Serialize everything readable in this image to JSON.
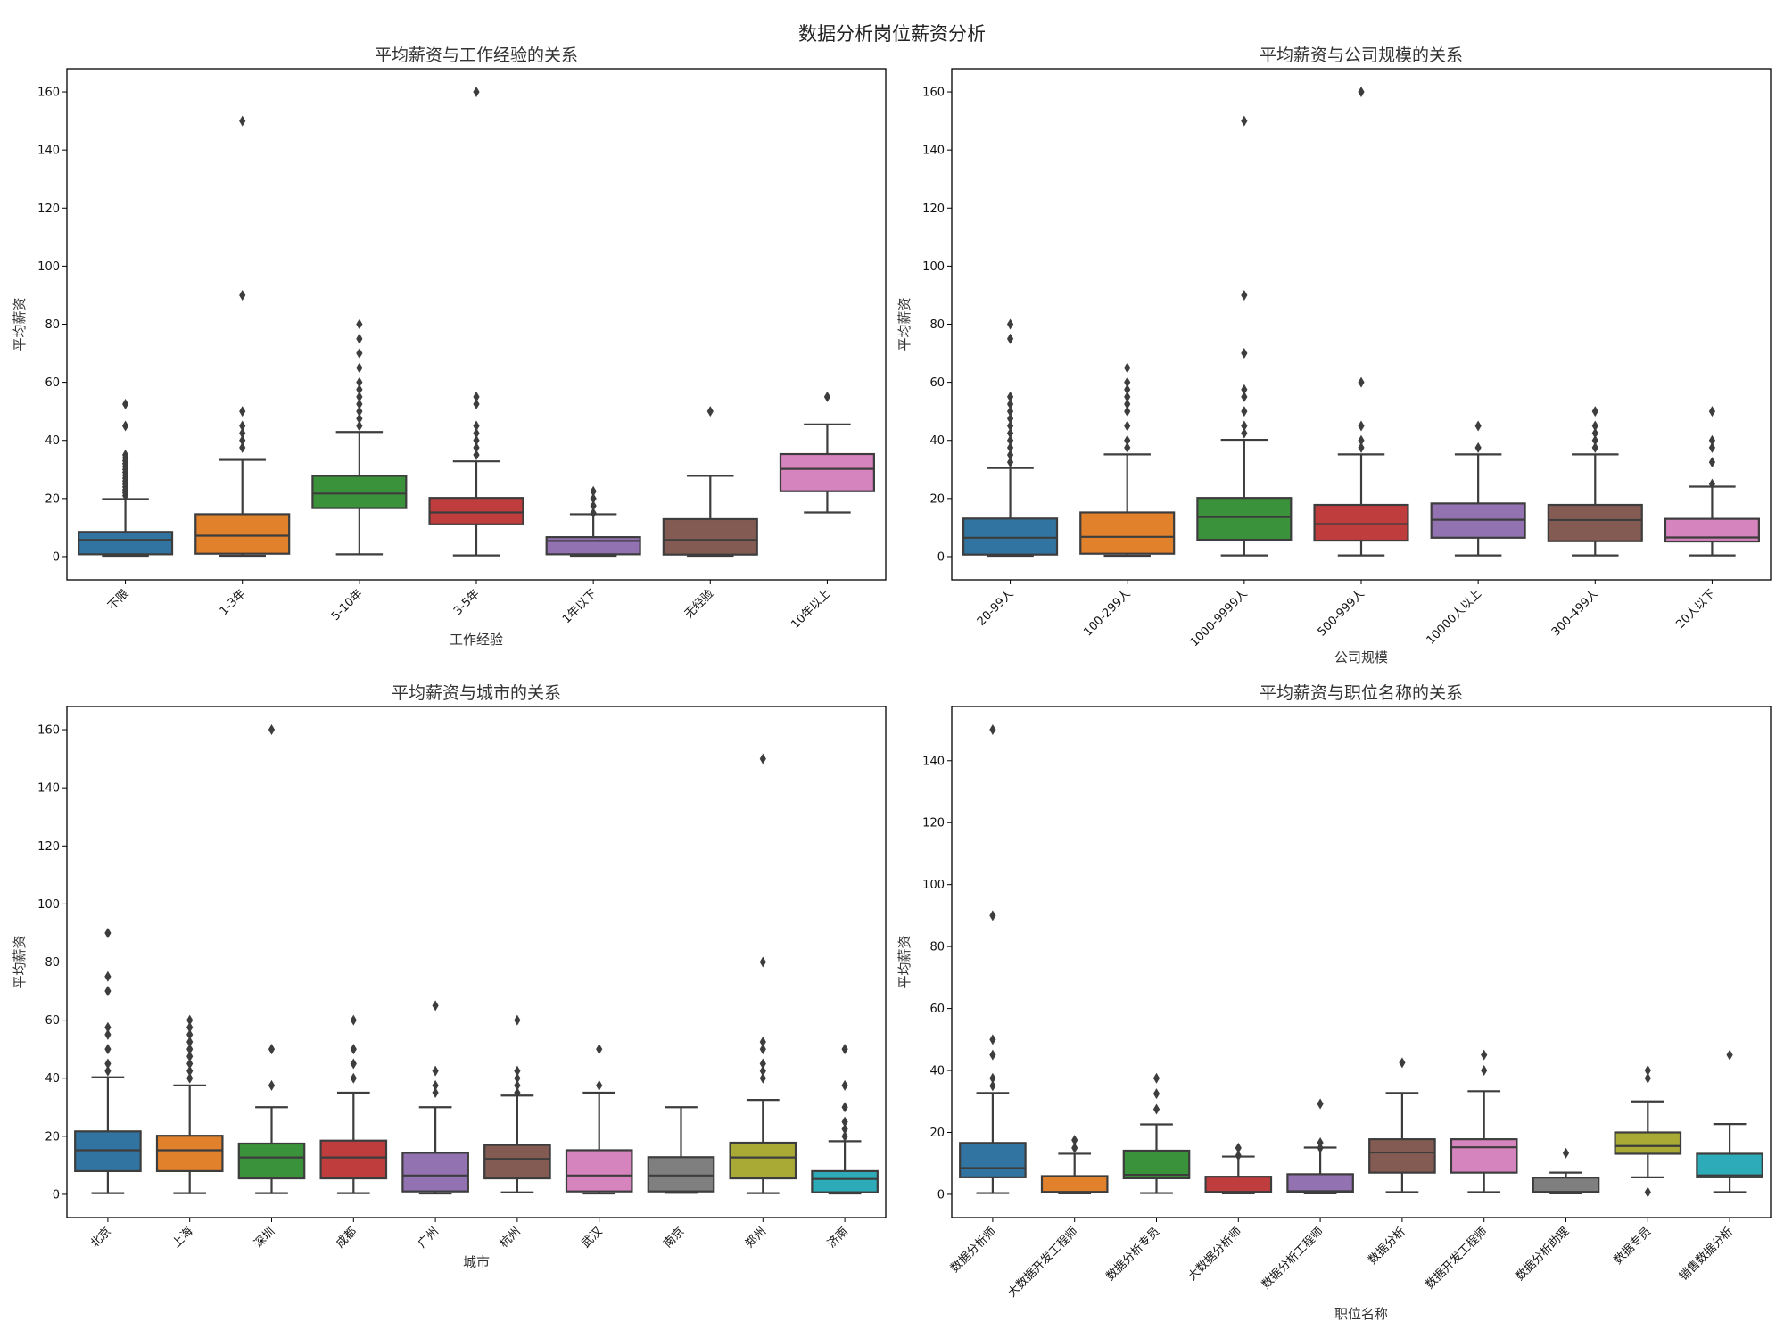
{
  "suptitle": "数据分析岗位薪资分析",
  "chart_data": [
    {
      "type": "box",
      "title": "平均薪资与工作经验的关系",
      "xlabel": "工作经验",
      "ylabel": "平均薪资",
      "ylim": [
        -8,
        168
      ],
      "yticks": [
        0,
        20,
        40,
        60,
        80,
        100,
        120,
        140,
        160
      ],
      "grid": false,
      "categories": [
        "不限",
        "1-3年",
        "5-10年",
        "3-5年",
        "1年以下",
        "无经验",
        "10年以上"
      ],
      "colors": [
        "#3274a1",
        "#e1812c",
        "#3a923a",
        "#c03d3e",
        "#9372b2",
        "#845b53",
        "#d684bd"
      ],
      "boxes": [
        {
          "whislo": 0.3,
          "q1": 0.8,
          "med": 5.7,
          "q3": 8.5,
          "whishi": 19.8,
          "fliers": [
            21,
            22,
            23,
            24,
            25,
            26,
            27,
            28,
            29,
            30,
            31,
            32,
            33,
            34,
            35,
            45,
            52.5
          ]
        },
        {
          "whislo": 0.3,
          "q1": 1.0,
          "med": 7.2,
          "q3": 14.6,
          "whishi": 33.3,
          "fliers": [
            37.5,
            40,
            42.5,
            45,
            50,
            90,
            150
          ]
        },
        {
          "whislo": 0.8,
          "q1": 16.7,
          "med": 21.7,
          "q3": 27.8,
          "whishi": 42.9,
          "fliers": [
            45,
            47.5,
            50,
            52.5,
            55,
            57.5,
            60,
            65,
            70,
            75,
            80
          ]
        },
        {
          "whislo": 0.4,
          "q1": 11.1,
          "med": 15.2,
          "q3": 20.2,
          "whishi": 32.8,
          "fliers": [
            35,
            37.5,
            40,
            42.5,
            45,
            52.5,
            55,
            160
          ]
        },
        {
          "whislo": 0.3,
          "q1": 0.8,
          "med": 5.4,
          "q3": 6.7,
          "whishi": 14.6,
          "fliers": [
            15,
            17.5,
            20,
            22.5
          ]
        },
        {
          "whislo": 0.3,
          "q1": 0.7,
          "med": 5.7,
          "q3": 12.9,
          "whishi": 27.8,
          "fliers": [
            50
          ]
        },
        {
          "whislo": 15.2,
          "q1": 22.5,
          "med": 30.2,
          "q3": 35.3,
          "whishi": 45.5,
          "fliers": [
            55
          ]
        }
      ]
    },
    {
      "type": "box",
      "title": "平均薪资与公司规模的关系",
      "xlabel": "公司规模",
      "ylabel": "平均薪资",
      "ylim": [
        -8,
        168
      ],
      "yticks": [
        0,
        20,
        40,
        60,
        80,
        100,
        120,
        140,
        160
      ],
      "grid": false,
      "categories": [
        "20-99人",
        "100-299人",
        "1000-9999人",
        "500-999人",
        "10000人以上",
        "300-499人",
        "20人以下"
      ],
      "colors": [
        "#3274a1",
        "#e1812c",
        "#3a923a",
        "#c03d3e",
        "#9372b2",
        "#845b53",
        "#d684bd"
      ],
      "boxes": [
        {
          "whislo": 0.3,
          "q1": 0.7,
          "med": 6.5,
          "q3": 13.1,
          "whishi": 30.5,
          "fliers": [
            32.5,
            35,
            37.5,
            40,
            42.5,
            45,
            47.5,
            50,
            52.5,
            55,
            75,
            80
          ]
        },
        {
          "whislo": 0.3,
          "q1": 1.0,
          "med": 6.8,
          "q3": 15.2,
          "whishi": 35.2,
          "fliers": [
            37.5,
            40,
            45,
            50,
            52.5,
            55,
            57.5,
            60,
            65
          ]
        },
        {
          "whislo": 0.4,
          "q1": 5.8,
          "med": 13.6,
          "q3": 20.2,
          "whishi": 40.2,
          "fliers": [
            42.5,
            45,
            50,
            55,
            57.5,
            70,
            90,
            150
          ]
        },
        {
          "whislo": 0.4,
          "q1": 5.5,
          "med": 11.2,
          "q3": 17.8,
          "whishi": 35.2,
          "fliers": [
            37.5,
            40,
            45,
            60,
            160
          ]
        },
        {
          "whislo": 0.4,
          "q1": 6.5,
          "med": 12.7,
          "q3": 18.3,
          "whishi": 35.2,
          "fliers": [
            37.5,
            45
          ]
        },
        {
          "whislo": 0.4,
          "q1": 5.3,
          "med": 12.6,
          "q3": 17.8,
          "whishi": 35.2,
          "fliers": [
            37.5,
            40,
            42.5,
            45,
            50
          ]
        },
        {
          "whislo": 0.4,
          "q1": 5.2,
          "med": 6.6,
          "q3": 13.0,
          "whishi": 24.1,
          "fliers": [
            25,
            32.5,
            37.5,
            40,
            50
          ]
        }
      ]
    },
    {
      "type": "box",
      "title": "平均薪资与城市的关系",
      "xlabel": "城市",
      "ylabel": "平均薪资",
      "ylim": [
        -8,
        168
      ],
      "yticks": [
        0,
        20,
        40,
        60,
        80,
        100,
        120,
        140,
        160
      ],
      "grid": false,
      "categories": [
        "北京",
        "上海",
        "深圳",
        "成都",
        "广州",
        "杭州",
        "武汉",
        "南京",
        "郑州",
        "济南"
      ],
      "colors": [
        "#3274a1",
        "#e1812c",
        "#3a923a",
        "#c03d3e",
        "#9372b2",
        "#845b53",
        "#d684bd",
        "#7f7f7f",
        "#a9aa35",
        "#2eabb8"
      ],
      "boxes": [
        {
          "whislo": 0.4,
          "q1": 8.0,
          "med": 15.2,
          "q3": 21.7,
          "whishi": 40.3,
          "fliers": [
            42.5,
            45,
            50,
            55,
            57.5,
            70,
            75,
            90
          ]
        },
        {
          "whislo": 0.4,
          "q1": 8.0,
          "med": 15.2,
          "q3": 20.2,
          "whishi": 37.5,
          "fliers": [
            40,
            42.5,
            45,
            47.5,
            50,
            52.5,
            55,
            57.5,
            60
          ]
        },
        {
          "whislo": 0.4,
          "q1": 5.5,
          "med": 12.7,
          "q3": 17.5,
          "whishi": 30.0,
          "fliers": [
            37.5,
            50,
            160
          ]
        },
        {
          "whislo": 0.4,
          "q1": 5.5,
          "med": 12.7,
          "q3": 18.5,
          "whishi": 35.0,
          "fliers": [
            40,
            45,
            50,
            60
          ]
        },
        {
          "whislo": 0.3,
          "q1": 1.0,
          "med": 6.5,
          "q3": 14.3,
          "whishi": 30.0,
          "fliers": [
            35,
            37.5,
            42.5,
            65
          ]
        },
        {
          "whislo": 0.7,
          "q1": 5.5,
          "med": 12.2,
          "q3": 17.0,
          "whishi": 34.0,
          "fliers": [
            35,
            37.5,
            40,
            42.5,
            60
          ]
        },
        {
          "whislo": 0.3,
          "q1": 1.0,
          "med": 6.5,
          "q3": 15.2,
          "whishi": 35.0,
          "fliers": [
            37.5,
            50
          ]
        },
        {
          "whislo": 0.5,
          "q1": 1.0,
          "med": 6.5,
          "q3": 12.8,
          "whishi": 30.0,
          "fliers": []
        },
        {
          "whislo": 0.4,
          "q1": 5.5,
          "med": 12.7,
          "q3": 17.8,
          "whishi": 32.5,
          "fliers": [
            40,
            42.5,
            45,
            50,
            52.5,
            80,
            150
          ]
        },
        {
          "whislo": 0.3,
          "q1": 0.7,
          "med": 5.3,
          "q3": 8.0,
          "whishi": 18.3,
          "fliers": [
            20,
            22.5,
            25,
            30,
            37.5,
            50
          ]
        }
      ]
    },
    {
      "type": "box",
      "title": "平均薪资与职位名称的关系",
      "xlabel": "职位名称",
      "ylabel": "平均薪资",
      "ylim": [
        -7.5,
        157.5
      ],
      "yticks": [
        0,
        20,
        40,
        60,
        80,
        100,
        120,
        140
      ],
      "grid": false,
      "categories": [
        "数据分析师",
        "大数据开发工程师",
        "数据分析专员",
        "大数据分析师",
        "数据分析工程师",
        "数据分析",
        "数据开发工程师",
        "数据分析助理",
        "数据专员",
        "销售数据分析"
      ],
      "colors": [
        "#3274a1",
        "#e1812c",
        "#3a923a",
        "#c03d3e",
        "#9372b2",
        "#845b53",
        "#d684bd",
        "#7f7f7f",
        "#a9aa35",
        "#2eabb8"
      ],
      "boxes": [
        {
          "whislo": 0.4,
          "q1": 5.5,
          "med": 8.5,
          "q3": 16.6,
          "whishi": 32.7,
          "fliers": [
            35,
            37.5,
            45,
            50,
            90,
            150
          ]
        },
        {
          "whislo": 0.3,
          "q1": 0.7,
          "med": 0.8,
          "q3": 5.9,
          "whishi": 13.1,
          "fliers": [
            15,
            17.5
          ]
        },
        {
          "whislo": 0.4,
          "q1": 5.2,
          "med": 6.3,
          "q3": 14.1,
          "whishi": 22.6,
          "fliers": [
            27.5,
            32.5,
            37.5
          ]
        },
        {
          "whislo": 0.3,
          "q1": 0.7,
          "med": 0.8,
          "q3": 5.7,
          "whishi": 12.2,
          "fliers": [
            12.5,
            15
          ]
        },
        {
          "whislo": 0.3,
          "q1": 0.7,
          "med": 1.0,
          "q3": 6.5,
          "whishi": 15.1,
          "fliers": [
            15,
            16.7,
            29.2
          ]
        },
        {
          "whislo": 0.7,
          "q1": 7.0,
          "med": 13.5,
          "q3": 17.8,
          "whishi": 32.7,
          "fliers": [
            42.5
          ]
        },
        {
          "whislo": 0.7,
          "q1": 7.0,
          "med": 15.2,
          "q3": 17.8,
          "whishi": 33.3,
          "fliers": [
            40,
            45
          ]
        },
        {
          "whislo": 0.3,
          "q1": 0.7,
          "med": 0.8,
          "q3": 5.4,
          "whishi": 7.0,
          "fliers": [
            13.3
          ]
        },
        {
          "whislo": 5.5,
          "q1": 13.1,
          "med": 15.6,
          "q3": 20.0,
          "whishi": 30.0,
          "fliers": [
            0.7,
            37.5,
            40
          ]
        },
        {
          "whislo": 0.7,
          "q1": 5.5,
          "med": 6.1,
          "q3": 13.1,
          "whishi": 22.7,
          "fliers": [
            45
          ]
        }
      ]
    }
  ]
}
